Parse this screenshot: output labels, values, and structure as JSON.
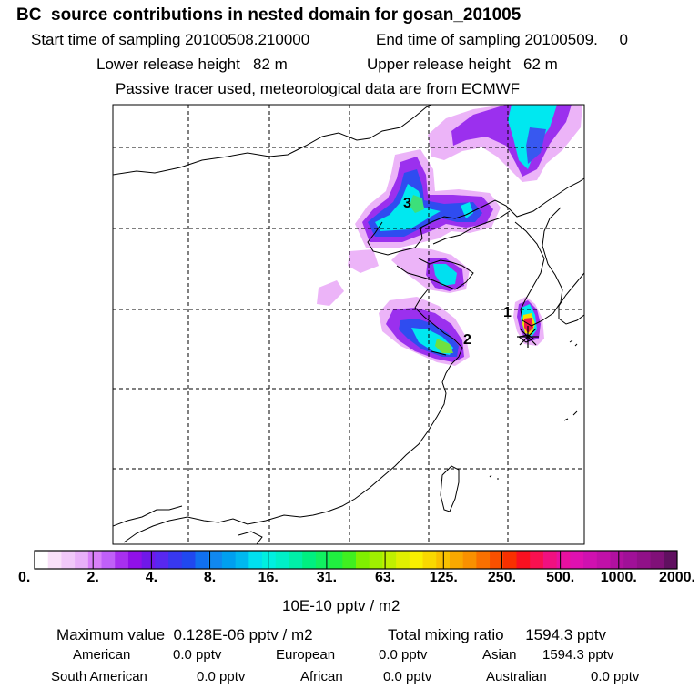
{
  "header": {
    "title": "BC  source contributions in nested domain for gosan_201005",
    "start_sampling": "Start time of sampling 20100508.210000",
    "end_sampling": "End time of sampling 20100509.     0",
    "lower_release": "Lower release height   82 m",
    "upper_release": "Upper release height   62 m",
    "tracer_note": "Passive tracer used, meteorological data are from ECMWF"
  },
  "map": {
    "source_labels": [
      "1",
      "2",
      "3"
    ],
    "colors": {
      "land_line": "#000000",
      "grid": "#000000",
      "plume_outer": "#e8a8f8",
      "plume_mid": "#a020f0",
      "plume_blue": "#2060f0",
      "plume_cyan": "#00f0f0",
      "plume_green": "#40e040",
      "hot_yellow": "#f0f000",
      "hot_red": "#f00040"
    }
  },
  "colorbar": {
    "tick_labels": [
      "0.",
      "2.",
      "4.",
      "8.",
      "16.",
      "31.",
      "63.",
      "125.",
      "250.",
      "500.",
      "1000.",
      "2000."
    ],
    "units": "10E-10 pptv / m2",
    "colors": [
      "#ffffff",
      "#f8e0f8",
      "#f0c8f8",
      "#e8b0f8",
      "#d880f8",
      "#c060f8",
      "#a830f0",
      "#9010e8",
      "#7018e8",
      "#5828f0",
      "#3838f0",
      "#2048f0",
      "#1070f0",
      "#1088f0",
      "#00a0f0",
      "#00b8f0",
      "#00e0f0",
      "#00f0e0",
      "#00f0c8",
      "#00f0a8",
      "#00f080",
      "#10f060",
      "#20f040",
      "#40f020",
      "#80f000",
      "#a0f000",
      "#c0f000",
      "#e0f000",
      "#f8f000",
      "#f8d800",
      "#f8c000",
      "#f8a800",
      "#f89000",
      "#f87000",
      "#f85000",
      "#f83000",
      "#f81020",
      "#f81050",
      "#f01080",
      "#e810a0",
      "#e010b0",
      "#d010b0",
      "#c010a8",
      "#b010a0",
      "#a01098",
      "#901088",
      "#801078",
      "#601060"
    ]
  },
  "summary": {
    "max_label": "Maximum value",
    "max_value": "0.128E-06 pptv / m2",
    "total_label": "Total mixing ratio",
    "total_value": "1594.3 pptv",
    "regions": [
      {
        "name": "American",
        "value": "0.0 pptv"
      },
      {
        "name": "European",
        "value": "0.0 pptv"
      },
      {
        "name": "Asian",
        "value": "1594.3 pptv"
      },
      {
        "name": "South American",
        "value": "0.0 pptv"
      },
      {
        "name": "African",
        "value": "0.0 pptv"
      },
      {
        "name": "Australian",
        "value": "0.0 pptv"
      }
    ]
  }
}
